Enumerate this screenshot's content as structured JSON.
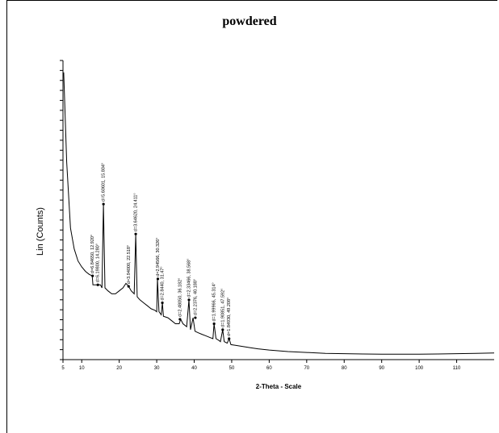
{
  "title": "powdered",
  "chart_data": {
    "type": "line",
    "title": "powdered",
    "xlabel": "2-Theta - Scale",
    "ylabel": "Lin (Counts)",
    "xlim": [
      5,
      120
    ],
    "x_ticks": [
      5,
      10,
      20,
      30,
      40,
      50,
      60,
      70,
      80,
      90,
      100,
      110
    ],
    "grid": false,
    "line_color": "#000000",
    "series": [
      {
        "values": [
          [
            5.2,
            0.96
          ],
          [
            6.0,
            0.66
          ],
          [
            7.0,
            0.44
          ],
          [
            8.0,
            0.37
          ],
          [
            9.0,
            0.33
          ],
          [
            10.0,
            0.31
          ],
          [
            11.0,
            0.295
          ],
          [
            12.0,
            0.285
          ],
          [
            12.8,
            0.28
          ],
          [
            13.0,
            0.25
          ],
          [
            14.0,
            0.25
          ],
          [
            14.3,
            0.25
          ],
          [
            15.0,
            0.25
          ],
          [
            15.4,
            0.24
          ],
          [
            15.8,
            0.52
          ],
          [
            16.2,
            0.24
          ],
          [
            17.0,
            0.23
          ],
          [
            18.0,
            0.22
          ],
          [
            19.0,
            0.22
          ],
          [
            20.0,
            0.23
          ],
          [
            21.0,
            0.24
          ],
          [
            21.8,
            0.255
          ],
          [
            22.5,
            0.245
          ],
          [
            23.2,
            0.23
          ],
          [
            24.0,
            0.22
          ],
          [
            24.4,
            0.42
          ],
          [
            24.8,
            0.21
          ],
          [
            25.5,
            0.2
          ],
          [
            26.5,
            0.19
          ],
          [
            27.5,
            0.18
          ],
          [
            28.5,
            0.17
          ],
          [
            29.5,
            0.165
          ],
          [
            30.0,
            0.16
          ],
          [
            30.2,
            0.27
          ],
          [
            30.6,
            0.16
          ],
          [
            31.2,
            0.15
          ],
          [
            31.5,
            0.19
          ],
          [
            31.8,
            0.145
          ],
          [
            33.0,
            0.14
          ],
          [
            34.0,
            0.13
          ],
          [
            35.0,
            0.12
          ],
          [
            36.0,
            0.12
          ],
          [
            36.4,
            0.135
          ],
          [
            37.0,
            0.12
          ],
          [
            38.0,
            0.11
          ],
          [
            38.6,
            0.2
          ],
          [
            39.0,
            0.1
          ],
          [
            39.7,
            0.14
          ],
          [
            40.2,
            0.095
          ],
          [
            41.0,
            0.09
          ],
          [
            42.0,
            0.085
          ],
          [
            43.0,
            0.08
          ],
          [
            44.0,
            0.075
          ],
          [
            45.0,
            0.07
          ],
          [
            45.3,
            0.12
          ],
          [
            45.8,
            0.07
          ],
          [
            46.5,
            0.065
          ],
          [
            47.0,
            0.06
          ],
          [
            47.6,
            0.1
          ],
          [
            48.0,
            0.06
          ],
          [
            48.8,
            0.055
          ],
          [
            49.3,
            0.07
          ],
          [
            49.8,
            0.05
          ],
          [
            51.0,
            0.048
          ],
          [
            53.0,
            0.044
          ],
          [
            55.0,
            0.04
          ],
          [
            57.0,
            0.036
          ],
          [
            60.0,
            0.032
          ],
          [
            65.0,
            0.027
          ],
          [
            70.0,
            0.024
          ],
          [
            75.0,
            0.021
          ],
          [
            80.0,
            0.02
          ],
          [
            85.0,
            0.019
          ],
          [
            90.0,
            0.018
          ],
          [
            95.0,
            0.018
          ],
          [
            100.0,
            0.018
          ],
          [
            105.0,
            0.019
          ],
          [
            110.0,
            0.02
          ],
          [
            115.0,
            0.021
          ],
          [
            120.0,
            0.022
          ]
        ]
      }
    ],
    "peaks": [
      {
        "x": 12.9,
        "y": 0.28,
        "label": "d=6.84650, 12.920°"
      },
      {
        "x": 14.3,
        "y": 0.25,
        "label": "d=6.19800, 14.280°"
      },
      {
        "x": 15.8,
        "y": 0.52,
        "label": "d=5.60601, 15.804°"
      },
      {
        "x": 22.5,
        "y": 0.245,
        "label": "d=3.94000, 22.518°"
      },
      {
        "x": 24.4,
        "y": 0.42,
        "label": "d=3.64620, 24.411°"
      },
      {
        "x": 30.3,
        "y": 0.27,
        "label": "d=2.94566, 30.326°"
      },
      {
        "x": 31.5,
        "y": 0.19,
        "label": "d=2.8440, 31.47°"
      },
      {
        "x": 36.2,
        "y": 0.135,
        "label": "d=2.48050, 36.182°"
      },
      {
        "x": 38.6,
        "y": 0.2,
        "label": "d=2.33466, 38.568°"
      },
      {
        "x": 40.3,
        "y": 0.14,
        "label": "d=2.2376, 40.188°"
      },
      {
        "x": 45.3,
        "y": 0.12,
        "label": "d=1.99966, 45.314°"
      },
      {
        "x": 47.6,
        "y": 0.1,
        "label": "d=1.90851, 47.592°"
      },
      {
        "x": 49.3,
        "y": 0.07,
        "label": "d=1.84930, 49.208°"
      }
    ]
  }
}
